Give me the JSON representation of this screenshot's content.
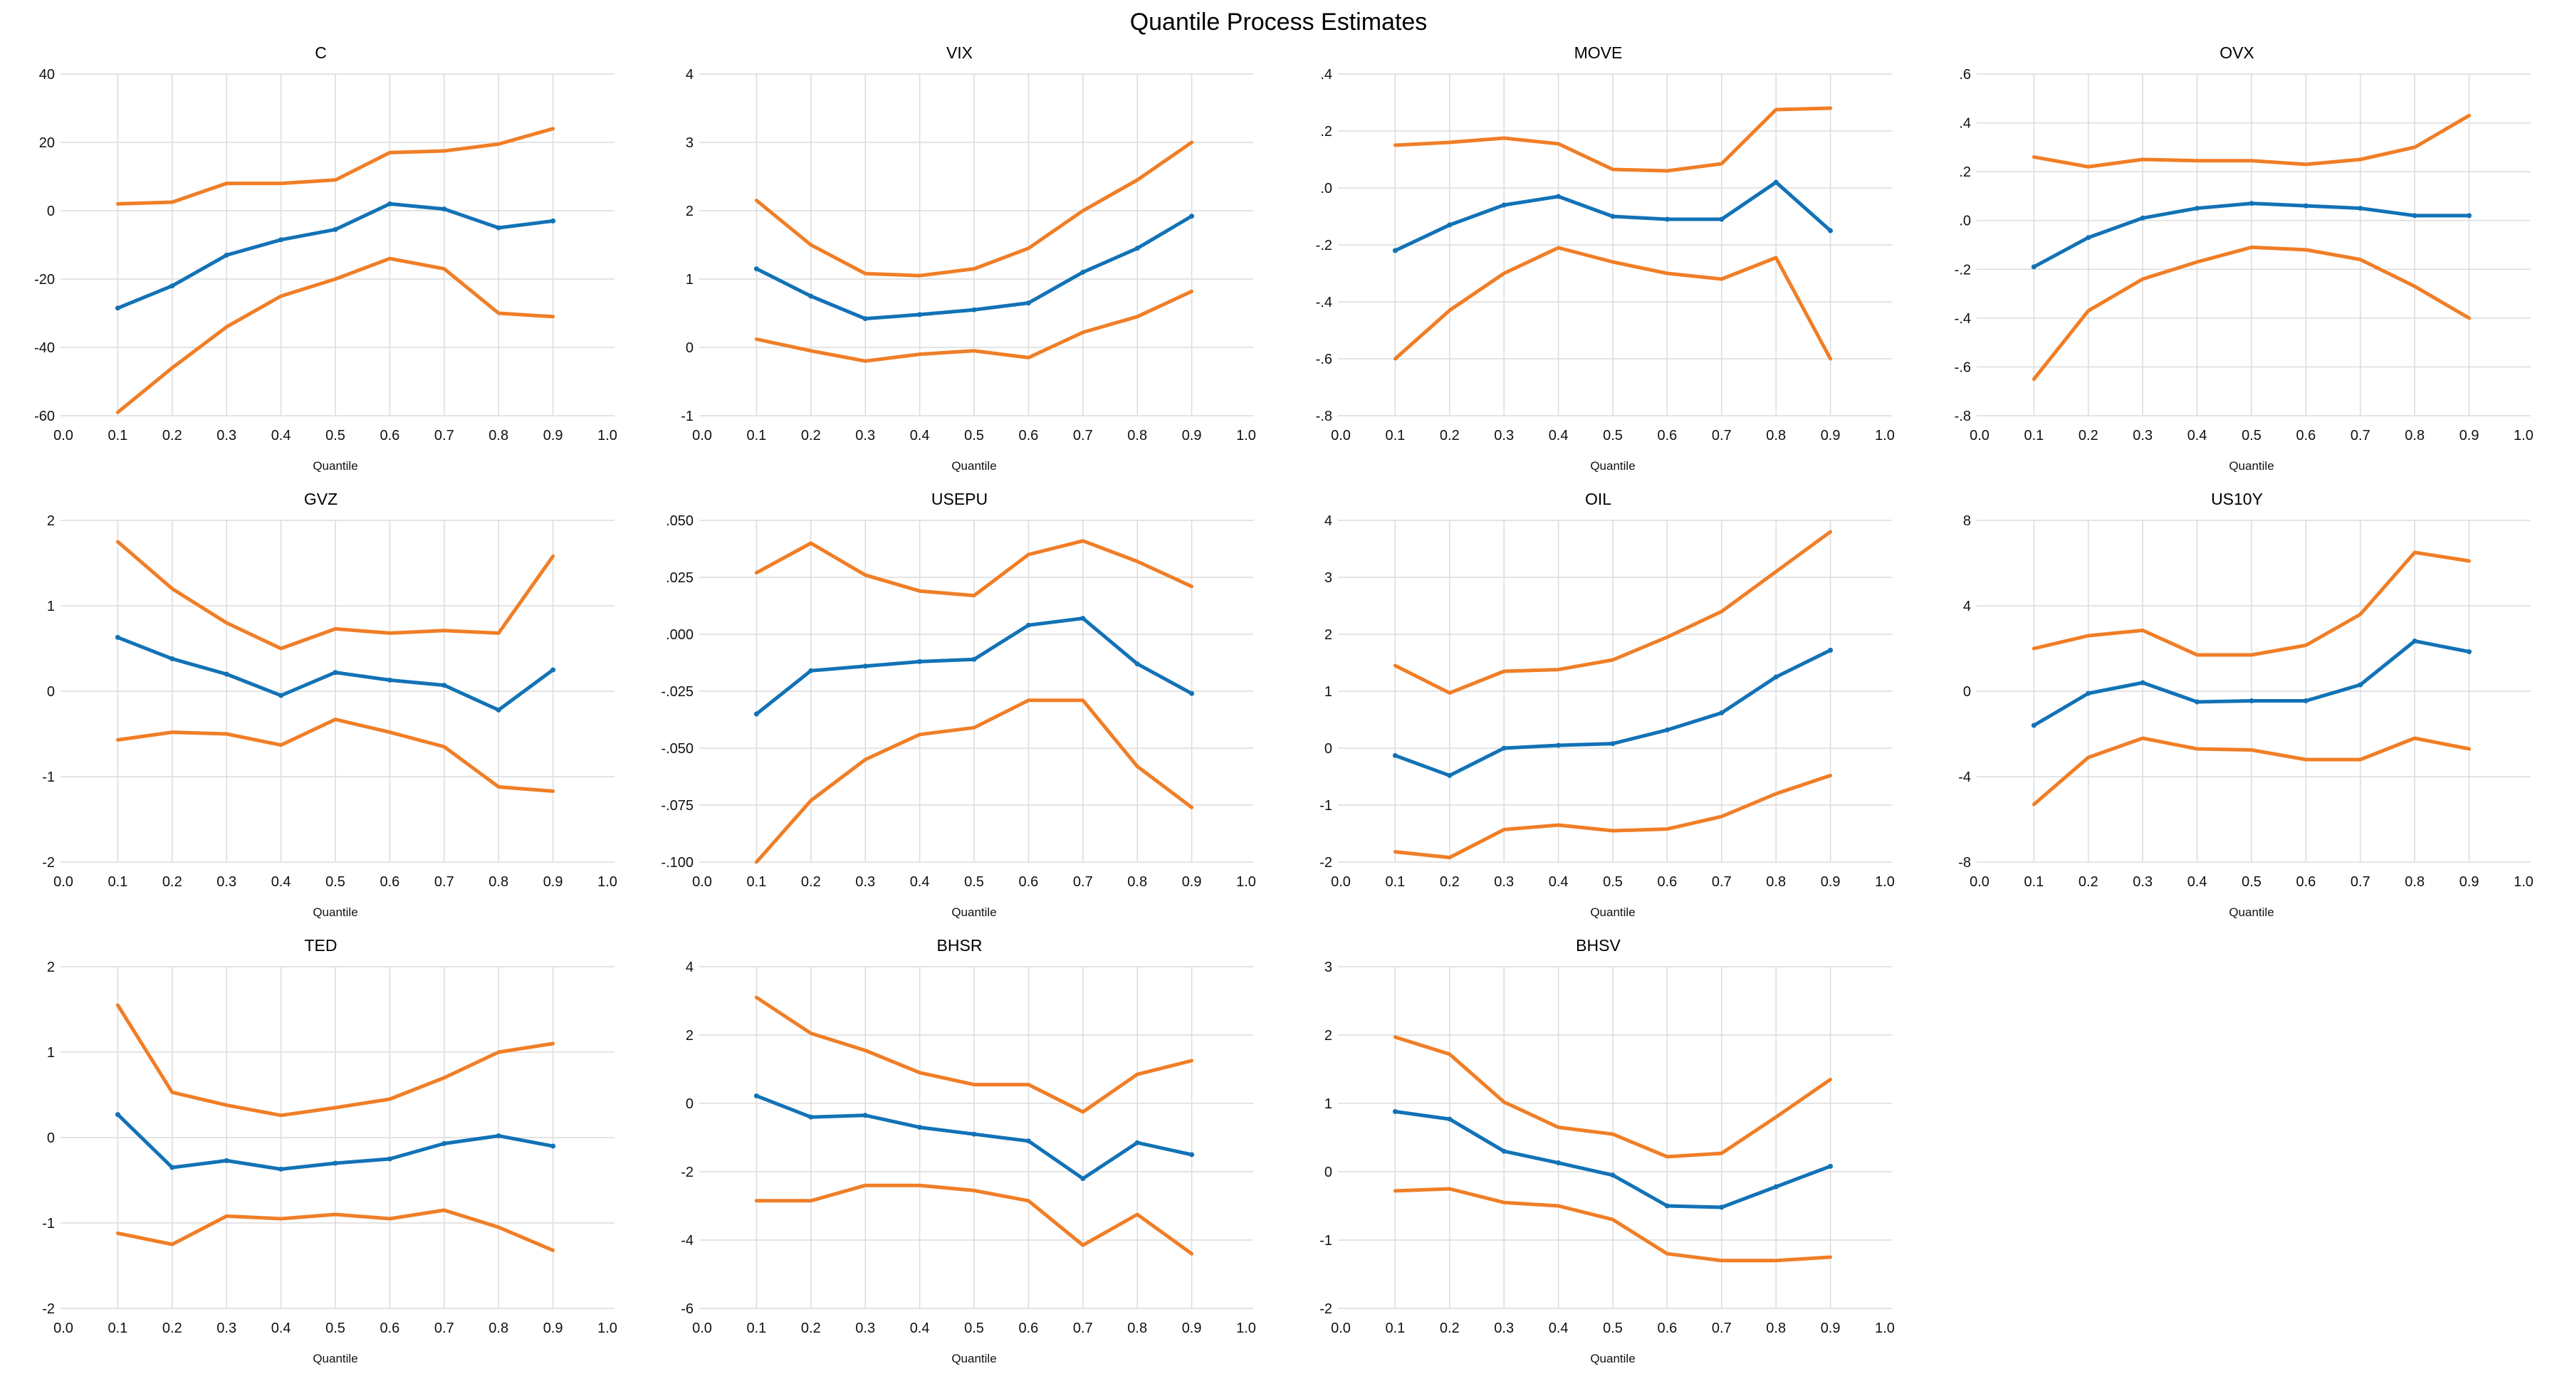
{
  "page": {
    "title": "Quantile Process Estimates",
    "xlabel": "Quantile"
  },
  "colors": {
    "estimate": "#1272B6",
    "band": "#F07E26",
    "grid": "#DCDCDC",
    "text": "#111111"
  },
  "xticks": {
    "values": [
      0.0,
      0.1,
      0.2,
      0.3,
      0.4,
      0.5,
      0.6,
      0.7,
      0.8,
      0.9,
      1.0
    ],
    "labels": [
      "0.0",
      "0.1",
      "0.2",
      "0.3",
      "0.4",
      "0.5",
      "0.6",
      "0.7",
      "0.8",
      "0.9",
      "1.0"
    ]
  },
  "chart_data": [
    {
      "type": "line",
      "title": "C",
      "xlabel": "Quantile",
      "x": [
        0.1,
        0.2,
        0.3,
        0.4,
        0.5,
        0.6,
        0.7,
        0.8,
        0.9
      ],
      "ylim": [
        -60,
        40
      ],
      "yticks": [
        {
          "value": 40,
          "label": "40"
        },
        {
          "value": 20,
          "label": "20"
        },
        {
          "value": 0,
          "label": "0"
        },
        {
          "value": -20,
          "label": "-20"
        },
        {
          "value": -40,
          "label": "-40"
        },
        {
          "value": -60,
          "label": "-60"
        }
      ],
      "series": [
        {
          "name": "estimate",
          "role": "estimate",
          "values": [
            -28.5,
            -22,
            -13,
            -8.5,
            -5.5,
            2,
            0.5,
            -5,
            -3
          ]
        },
        {
          "name": "upper-band",
          "role": "band",
          "values": [
            2,
            2.5,
            8,
            8,
            9,
            17,
            17.5,
            19.5,
            24
          ]
        },
        {
          "name": "lower-band",
          "role": "band",
          "values": [
            -59,
            -46,
            -34,
            -25,
            -20,
            -14,
            -17,
            -30,
            -31
          ]
        }
      ]
    },
    {
      "type": "line",
      "title": "VIX",
      "xlabel": "Quantile",
      "x": [
        0.1,
        0.2,
        0.3,
        0.4,
        0.5,
        0.6,
        0.7,
        0.8,
        0.9
      ],
      "ylim": [
        -1,
        4
      ],
      "yticks": [
        {
          "value": 4,
          "label": "4"
        },
        {
          "value": 3,
          "label": "3"
        },
        {
          "value": 2,
          "label": "2"
        },
        {
          "value": 1,
          "label": "1"
        },
        {
          "value": 0,
          "label": "0"
        },
        {
          "value": -1,
          "label": "-1"
        }
      ],
      "series": [
        {
          "name": "estimate",
          "role": "estimate",
          "values": [
            1.15,
            0.75,
            0.42,
            0.48,
            0.55,
            0.65,
            1.1,
            1.45,
            1.92
          ]
        },
        {
          "name": "upper-band",
          "role": "band",
          "values": [
            2.15,
            1.5,
            1.08,
            1.05,
            1.15,
            1.45,
            2.0,
            2.45,
            3.0
          ]
        },
        {
          "name": "lower-band",
          "role": "band",
          "values": [
            0.12,
            -0.05,
            -0.2,
            -0.1,
            -0.05,
            -0.15,
            0.22,
            0.45,
            0.82
          ]
        }
      ]
    },
    {
      "type": "line",
      "title": "MOVE",
      "xlabel": "Quantile",
      "x": [
        0.1,
        0.2,
        0.3,
        0.4,
        0.5,
        0.6,
        0.7,
        0.8,
        0.9
      ],
      "ylim": [
        -0.8,
        0.4
      ],
      "yticks": [
        {
          "value": 0.4,
          "label": ".4"
        },
        {
          "value": 0.2,
          "label": ".2"
        },
        {
          "value": 0.0,
          "label": ".0"
        },
        {
          "value": -0.2,
          "label": "-.2"
        },
        {
          "value": -0.4,
          "label": "-.4"
        },
        {
          "value": -0.6,
          "label": "-.6"
        },
        {
          "value": -0.8,
          "label": "-.8"
        }
      ],
      "series": [
        {
          "name": "estimate",
          "role": "estimate",
          "values": [
            -0.22,
            -0.13,
            -0.06,
            -0.03,
            -0.1,
            -0.11,
            -0.11,
            0.02,
            -0.15
          ]
        },
        {
          "name": "upper-band",
          "role": "band",
          "values": [
            0.15,
            0.16,
            0.175,
            0.155,
            0.065,
            0.06,
            0.085,
            0.275,
            0.28
          ]
        },
        {
          "name": "lower-band",
          "role": "band",
          "values": [
            -0.6,
            -0.43,
            -0.3,
            -0.21,
            -0.26,
            -0.3,
            -0.32,
            -0.245,
            -0.6
          ]
        }
      ]
    },
    {
      "type": "line",
      "title": "OVX",
      "xlabel": "Quantile",
      "x": [
        0.1,
        0.2,
        0.3,
        0.4,
        0.5,
        0.6,
        0.7,
        0.8,
        0.9
      ],
      "ylim": [
        -0.8,
        0.6
      ],
      "yticks": [
        {
          "value": 0.6,
          "label": ".6"
        },
        {
          "value": 0.4,
          "label": ".4"
        },
        {
          "value": 0.2,
          "label": ".2"
        },
        {
          "value": 0.0,
          "label": ".0"
        },
        {
          "value": -0.2,
          "label": "-.2"
        },
        {
          "value": -0.4,
          "label": "-.4"
        },
        {
          "value": -0.6,
          "label": "-.6"
        },
        {
          "value": -0.8,
          "label": "-.8"
        }
      ],
      "series": [
        {
          "name": "estimate",
          "role": "estimate",
          "values": [
            -0.19,
            -0.07,
            0.01,
            0.05,
            0.07,
            0.06,
            0.05,
            0.02,
            0.02
          ]
        },
        {
          "name": "upper-band",
          "role": "band",
          "values": [
            0.26,
            0.22,
            0.25,
            0.245,
            0.245,
            0.23,
            0.25,
            0.3,
            0.43
          ]
        },
        {
          "name": "lower-band",
          "role": "band",
          "values": [
            -0.65,
            -0.37,
            -0.24,
            -0.17,
            -0.11,
            -0.12,
            -0.16,
            -0.27,
            -0.4
          ]
        }
      ]
    },
    {
      "type": "line",
      "title": "GVZ",
      "xlabel": "Quantile",
      "x": [
        0.1,
        0.2,
        0.3,
        0.4,
        0.5,
        0.6,
        0.7,
        0.8,
        0.9
      ],
      "ylim": [
        -2,
        2
      ],
      "yticks": [
        {
          "value": 2,
          "label": "2"
        },
        {
          "value": 1,
          "label": "1"
        },
        {
          "value": 0,
          "label": "0"
        },
        {
          "value": -1,
          "label": "-1"
        },
        {
          "value": -2,
          "label": "-2"
        }
      ],
      "series": [
        {
          "name": "estimate",
          "role": "estimate",
          "values": [
            0.63,
            0.38,
            0.2,
            -0.05,
            0.22,
            0.13,
            0.07,
            -0.22,
            0.25
          ]
        },
        {
          "name": "upper-band",
          "role": "band",
          "values": [
            1.75,
            1.2,
            0.8,
            0.5,
            0.73,
            0.68,
            0.71,
            0.68,
            1.58
          ]
        },
        {
          "name": "lower-band",
          "role": "band",
          "values": [
            -0.57,
            -0.48,
            -0.5,
            -0.63,
            -0.33,
            -0.48,
            -0.65,
            -1.12,
            -1.17
          ]
        }
      ]
    },
    {
      "type": "line",
      "title": "USEPU",
      "xlabel": "Quantile",
      "x": [
        0.1,
        0.2,
        0.3,
        0.4,
        0.5,
        0.6,
        0.7,
        0.8,
        0.9
      ],
      "ylim": [
        -0.1,
        0.05
      ],
      "yticks": [
        {
          "value": 0.05,
          "label": ".050"
        },
        {
          "value": 0.025,
          "label": ".025"
        },
        {
          "value": 0.0,
          "label": ".000"
        },
        {
          "value": -0.025,
          "label": "-.025"
        },
        {
          "value": -0.05,
          "label": "-.050"
        },
        {
          "value": -0.075,
          "label": "-.075"
        },
        {
          "value": -0.1,
          "label": "-.100"
        }
      ],
      "series": [
        {
          "name": "estimate",
          "role": "estimate",
          "values": [
            -0.035,
            -0.016,
            -0.014,
            -0.012,
            -0.011,
            0.004,
            0.007,
            -0.013,
            -0.026
          ]
        },
        {
          "name": "upper-band",
          "role": "band",
          "values": [
            0.027,
            0.04,
            0.026,
            0.019,
            0.017,
            0.035,
            0.041,
            0.032,
            0.021
          ]
        },
        {
          "name": "lower-band",
          "role": "band",
          "values": [
            -0.1,
            -0.073,
            -0.055,
            -0.044,
            -0.041,
            -0.029,
            -0.029,
            -0.058,
            -0.076
          ]
        }
      ]
    },
    {
      "type": "line",
      "title": "OIL",
      "xlabel": "Quantile",
      "x": [
        0.1,
        0.2,
        0.3,
        0.4,
        0.5,
        0.6,
        0.7,
        0.8,
        0.9
      ],
      "ylim": [
        -2,
        4
      ],
      "yticks": [
        {
          "value": 4,
          "label": "4"
        },
        {
          "value": 3,
          "label": "3"
        },
        {
          "value": 2,
          "label": "2"
        },
        {
          "value": 1,
          "label": "1"
        },
        {
          "value": 0,
          "label": "0"
        },
        {
          "value": -1,
          "label": "-1"
        },
        {
          "value": -2,
          "label": "-2"
        }
      ],
      "series": [
        {
          "name": "estimate",
          "role": "estimate",
          "values": [
            -0.13,
            -0.48,
            0.0,
            0.05,
            0.08,
            0.32,
            0.62,
            1.25,
            1.72
          ]
        },
        {
          "name": "upper-band",
          "role": "band",
          "values": [
            1.45,
            0.97,
            1.35,
            1.38,
            1.55,
            1.95,
            2.4,
            3.1,
            3.8
          ]
        },
        {
          "name": "lower-band",
          "role": "band",
          "values": [
            -1.82,
            -1.92,
            -1.43,
            -1.35,
            -1.45,
            -1.42,
            -1.2,
            -0.8,
            -0.48
          ]
        }
      ]
    },
    {
      "type": "line",
      "title": "US10Y",
      "xlabel": "Quantile",
      "x": [
        0.1,
        0.2,
        0.3,
        0.4,
        0.5,
        0.6,
        0.7,
        0.8,
        0.9
      ],
      "ylim": [
        -8,
        8
      ],
      "yticks": [
        {
          "value": 8,
          "label": "8"
        },
        {
          "value": 4,
          "label": "4"
        },
        {
          "value": 0,
          "label": "0"
        },
        {
          "value": -4,
          "label": "-4"
        },
        {
          "value": -8,
          "label": "-8"
        }
      ],
      "series": [
        {
          "name": "estimate",
          "role": "estimate",
          "values": [
            -1.6,
            -0.1,
            0.4,
            -0.5,
            -0.45,
            -0.45,
            0.3,
            2.35,
            1.85
          ]
        },
        {
          "name": "upper-band",
          "role": "band",
          "values": [
            2.0,
            2.6,
            2.85,
            1.7,
            1.7,
            2.15,
            3.6,
            6.5,
            6.1
          ]
        },
        {
          "name": "lower-band",
          "role": "band",
          "values": [
            -5.3,
            -3.1,
            -2.2,
            -2.7,
            -2.75,
            -3.2,
            -3.2,
            -2.2,
            -2.7
          ]
        }
      ]
    },
    {
      "type": "line",
      "title": "TED",
      "xlabel": "Quantile",
      "x": [
        0.1,
        0.2,
        0.3,
        0.4,
        0.5,
        0.6,
        0.7,
        0.8,
        0.9
      ],
      "ylim": [
        -2,
        2
      ],
      "yticks": [
        {
          "value": 2,
          "label": "2"
        },
        {
          "value": 1,
          "label": "1"
        },
        {
          "value": 0,
          "label": "0"
        },
        {
          "value": -1,
          "label": "-1"
        },
        {
          "value": -2,
          "label": "-2"
        }
      ],
      "series": [
        {
          "name": "estimate",
          "role": "estimate",
          "values": [
            0.27,
            -0.35,
            -0.27,
            -0.37,
            -0.3,
            -0.25,
            -0.07,
            0.02,
            -0.1
          ]
        },
        {
          "name": "upper-band",
          "role": "band",
          "values": [
            1.55,
            0.53,
            0.38,
            0.26,
            0.35,
            0.45,
            0.7,
            1.0,
            1.1
          ]
        },
        {
          "name": "lower-band",
          "role": "band",
          "values": [
            -1.12,
            -1.25,
            -0.92,
            -0.95,
            -0.9,
            -0.95,
            -0.85,
            -1.05,
            -1.32
          ]
        }
      ]
    },
    {
      "type": "line",
      "title": "BHSR",
      "xlabel": "Quantile",
      "x": [
        0.1,
        0.2,
        0.3,
        0.4,
        0.5,
        0.6,
        0.7,
        0.8,
        0.9
      ],
      "ylim": [
        -6,
        4
      ],
      "yticks": [
        {
          "value": 4,
          "label": "4"
        },
        {
          "value": 2,
          "label": "2"
        },
        {
          "value": 0,
          "label": "0"
        },
        {
          "value": -2,
          "label": "-2"
        },
        {
          "value": -4,
          "label": "-4"
        },
        {
          "value": -6,
          "label": "-6"
        }
      ],
      "series": [
        {
          "name": "estimate",
          "role": "estimate",
          "values": [
            0.22,
            -0.4,
            -0.35,
            -0.7,
            -0.9,
            -1.1,
            -2.2,
            -1.15,
            -1.5
          ]
        },
        {
          "name": "upper-band",
          "role": "band",
          "values": [
            3.1,
            2.05,
            1.55,
            0.9,
            0.55,
            0.55,
            -0.25,
            0.85,
            1.25
          ]
        },
        {
          "name": "lower-band",
          "role": "band",
          "values": [
            -2.85,
            -2.85,
            -2.4,
            -2.4,
            -2.55,
            -2.85,
            -4.15,
            -3.25,
            -4.4
          ]
        }
      ]
    },
    {
      "type": "line",
      "title": "BHSV",
      "xlabel": "Quantile",
      "x": [
        0.1,
        0.2,
        0.3,
        0.4,
        0.5,
        0.6,
        0.7,
        0.8,
        0.9
      ],
      "ylim": [
        -2,
        3
      ],
      "yticks": [
        {
          "value": 3,
          "label": "3"
        },
        {
          "value": 2,
          "label": "2"
        },
        {
          "value": 1,
          "label": "1"
        },
        {
          "value": 0,
          "label": "0"
        },
        {
          "value": -1,
          "label": "-1"
        },
        {
          "value": -2,
          "label": "-2"
        }
      ],
      "series": [
        {
          "name": "estimate",
          "role": "estimate",
          "values": [
            0.88,
            0.77,
            0.3,
            0.13,
            -0.05,
            -0.5,
            -0.52,
            -0.22,
            0.08
          ]
        },
        {
          "name": "upper-band",
          "role": "band",
          "values": [
            1.97,
            1.72,
            1.02,
            0.65,
            0.55,
            0.22,
            0.27,
            0.8,
            1.35
          ]
        },
        {
          "name": "lower-band",
          "role": "band",
          "values": [
            -0.28,
            -0.25,
            -0.45,
            -0.5,
            -0.7,
            -1.2,
            -1.3,
            -1.3,
            -1.25
          ]
        }
      ]
    }
  ]
}
